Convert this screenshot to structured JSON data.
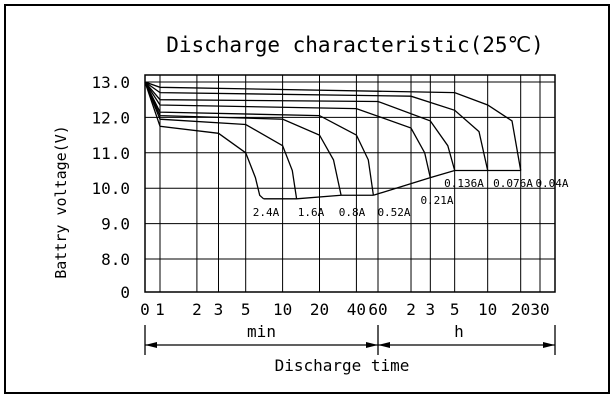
{
  "chart_data": {
    "type": "line",
    "title": "Discharge characteristic(25℃)",
    "xlabel": "Discharge time",
    "ylabel": "Battry voltage(V)",
    "ylim": [
      0,
      13.0
    ],
    "y_ticks": [
      "0",
      "8.0",
      "9.0",
      "10.0",
      "11.0",
      "12.0",
      "13.0"
    ],
    "x_ticks": [
      "0",
      "1",
      "2",
      "3",
      "5",
      "10",
      "20",
      "40",
      "60",
      "2",
      "3",
      "5",
      "10",
      "20",
      "30"
    ],
    "x_scale": "log",
    "x_sections": [
      {
        "label": "min",
        "from_minutes": 0,
        "to_minutes": 60
      },
      {
        "label": "h",
        "from_minutes": 60,
        "to_minutes": 1800
      }
    ],
    "series": [
      {
        "name": "2.4A",
        "x_minutes": [
          0,
          1,
          3,
          5,
          6,
          6.5,
          7
        ],
        "y": [
          13.0,
          11.75,
          11.55,
          11.0,
          10.3,
          9.8,
          9.7
        ]
      },
      {
        "name": "1.6A",
        "x_minutes": [
          0,
          1,
          5,
          10,
          12,
          13
        ],
        "y": [
          13.0,
          11.95,
          11.8,
          11.2,
          10.5,
          9.7
        ]
      },
      {
        "name": "0.8A",
        "x_minutes": [
          0,
          1,
          10,
          20,
          26,
          30
        ],
        "y": [
          13.0,
          12.05,
          11.95,
          11.5,
          10.8,
          9.8
        ]
      },
      {
        "name": "0.52A",
        "x_minutes": [
          0,
          1,
          20,
          40,
          50,
          55
        ],
        "y": [
          13.0,
          12.15,
          12.05,
          11.5,
          10.8,
          9.8
        ]
      },
      {
        "name": "0.21A",
        "x_minutes": [
          0,
          1,
          40,
          120,
          160,
          180
        ],
        "y": [
          13.0,
          12.35,
          12.25,
          11.7,
          11.0,
          10.3
        ]
      },
      {
        "name": "0.136A",
        "x_minutes": [
          0,
          1,
          60,
          180,
          260,
          300
        ],
        "y": [
          13.0,
          12.5,
          12.45,
          11.9,
          11.2,
          10.5
        ]
      },
      {
        "name": "0.076A",
        "x_minutes": [
          0,
          1,
          120,
          300,
          500,
          600
        ],
        "y": [
          13.0,
          12.7,
          12.6,
          12.2,
          11.6,
          10.5
        ]
      },
      {
        "name": "0.04A",
        "x_minutes": [
          0,
          1,
          300,
          600,
          1000,
          1200
        ],
        "y": [
          13.0,
          12.85,
          12.7,
          12.35,
          11.9,
          10.5
        ]
      }
    ],
    "cutoff_line_label_positions_note": "",
    "grid": true,
    "legend": "inline"
  }
}
